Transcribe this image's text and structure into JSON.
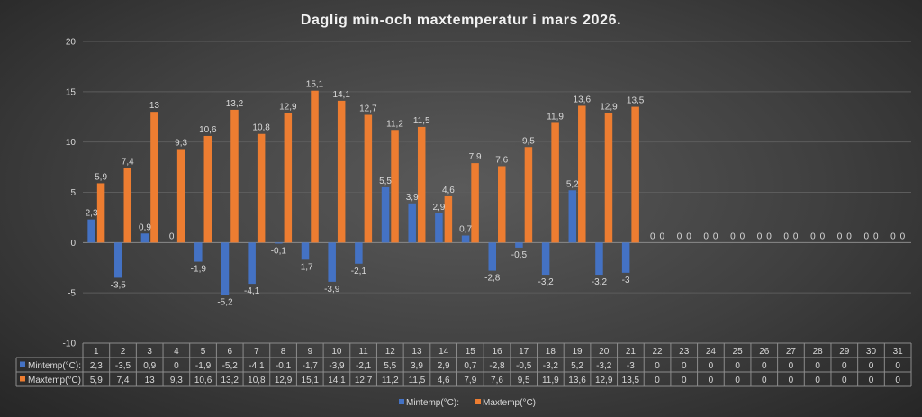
{
  "chart_data": {
    "type": "bar",
    "title": "Daglig min-och maxtemperatur i mars 2026.",
    "categories": [
      "1",
      "2",
      "3",
      "4",
      "5",
      "6",
      "7",
      "8",
      "9",
      "10",
      "11",
      "12",
      "13",
      "14",
      "15",
      "16",
      "17",
      "18",
      "19",
      "20",
      "21",
      "22",
      "23",
      "24",
      "25",
      "26",
      "27",
      "28",
      "29",
      "30",
      "31"
    ],
    "series": [
      {
        "name": "Mintemp(°C):",
        "color": "#4472C4",
        "values": [
          2.3,
          -3.5,
          0.9,
          0,
          -1.9,
          -5.2,
          -4.1,
          -0.1,
          -1.7,
          -3.9,
          -2.1,
          5.5,
          3.9,
          2.9,
          0.7,
          -2.8,
          -0.5,
          -3.2,
          5.2,
          -3.2,
          -3,
          0,
          0,
          0,
          0,
          0,
          0,
          0,
          0,
          0,
          0
        ],
        "labels": [
          "2,3",
          "-3,5",
          "0,9",
          "0",
          "-1,9",
          "-5,2",
          "-4,1",
          "-0,1",
          "-1,7",
          "-3,9",
          "-2,1",
          "5,5",
          "3,9",
          "2,9",
          "0,7",
          "-2,8",
          "-0,5",
          "-3,2",
          "5,2",
          "-3,2",
          "-3",
          "0",
          "0",
          "0",
          "0",
          "0",
          "0",
          "0",
          "0",
          "0",
          "0"
        ]
      },
      {
        "name": "Maxtemp(°C)",
        "color": "#ED7D31",
        "values": [
          5.9,
          7.4,
          13,
          9.3,
          10.6,
          13.2,
          10.8,
          12.9,
          15.1,
          14.1,
          12.7,
          11.2,
          11.5,
          4.6,
          7.9,
          7.6,
          9.5,
          11.9,
          13.6,
          12.9,
          13.5,
          0,
          0,
          0,
          0,
          0,
          0,
          0,
          0,
          0,
          0
        ],
        "labels": [
          "5,9",
          "7,4",
          "13",
          "9,3",
          "10,6",
          "13,2",
          "10,8",
          "12,9",
          "15,1",
          "14,1",
          "12,7",
          "11,2",
          "11,5",
          "4,6",
          "7,9",
          "7,6",
          "9,5",
          "11,9",
          "13,6",
          "12,9",
          "13,5",
          "0",
          "0",
          "0",
          "0",
          "0",
          "0",
          "0",
          "0",
          "0",
          "0"
        ]
      }
    ],
    "ylim": [
      -10,
      20
    ],
    "yticks": [
      "20",
      "15",
      "10",
      "5",
      "0",
      "-5",
      "-10"
    ],
    "data_table": true,
    "legend_position": "bottom",
    "grid": true
  }
}
